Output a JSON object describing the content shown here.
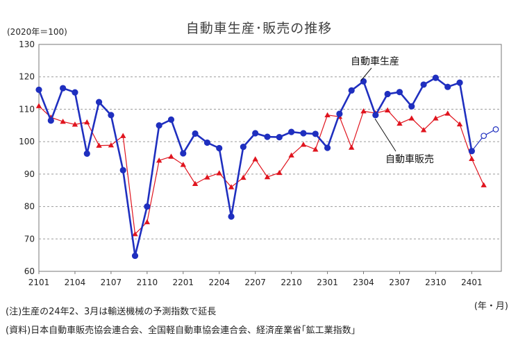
{
  "title": "自動車生産･販売の推移",
  "unit_label": "(2020年＝100)",
  "x_unit_label": "(年・月)",
  "notes": [
    "(注)生産の24年2、3月は輸送機械の予測指数で延長",
    "(資料)日本自動車販売協会連合会、全国軽自動車協会連合会、経済産業省｢鉱工業指数｣"
  ],
  "colors": {
    "production": "#1f2fbf",
    "sales": "#e0141e",
    "grid": "#9a9a9a"
  },
  "chart_data": {
    "type": "line",
    "title": "自動車生産･販売の推移",
    "xlabel": "(年・月)",
    "ylabel": "(2020年＝100)",
    "ylim": [
      60,
      130
    ],
    "yticks": [
      60,
      70,
      80,
      90,
      100,
      110,
      120,
      130
    ],
    "grid": true,
    "x": [
      "2101",
      "2102",
      "2103",
      "2104",
      "2105",
      "2106",
      "2107",
      "2108",
      "2109",
      "2110",
      "2111",
      "2112",
      "2201",
      "2202",
      "2203",
      "2204",
      "2205",
      "2206",
      "2207",
      "2208",
      "2209",
      "2210",
      "2211",
      "2212",
      "2301",
      "2302",
      "2303",
      "2304",
      "2305",
      "2306",
      "2307",
      "2308",
      "2309",
      "2310",
      "2311",
      "2312",
      "2401",
      "2402",
      "2403"
    ],
    "xticks": [
      "2101",
      "2104",
      "2107",
      "2110",
      "2201",
      "2204",
      "2207",
      "2210",
      "2301",
      "2304",
      "2307",
      "2310",
      "2401"
    ],
    "series": [
      {
        "name": "自動車生産",
        "values": [
          116,
          106.5,
          116.5,
          115.2,
          96.3,
          112.2,
          108.2,
          91.2,
          64.8,
          80.0,
          105.0,
          106.8,
          96.4,
          102.5,
          99.7,
          98.0,
          76.9,
          98.4,
          102.6,
          101.5,
          101.4,
          103.0,
          102.6,
          102.4,
          98.1,
          108.6,
          115.8,
          118.6,
          108.2,
          114.7,
          115.3,
          110.9,
          117.6,
          119.7,
          116.9,
          118.2,
          97.1,
          101.8,
          103.8
        ],
        "forecast_points": [
          "2402",
          "2403"
        ]
      },
      {
        "name": "自動車販売",
        "values": [
          111,
          107.5,
          106.2,
          105.3,
          106.0,
          98.8,
          98.9,
          101.8,
          71.5,
          75.2,
          94.2,
          95.4,
          92.9,
          87.0,
          89.0,
          90.3,
          86.0,
          88.9,
          94.6,
          89.1,
          90.4,
          95.8,
          99.1,
          97.6,
          108.2,
          107.7,
          98.2,
          109.4,
          108.8,
          109.7,
          105.6,
          107.2,
          103.6,
          107.2,
          108.7,
          105.4,
          94.7,
          86.6,
          null
        ]
      }
    ]
  }
}
